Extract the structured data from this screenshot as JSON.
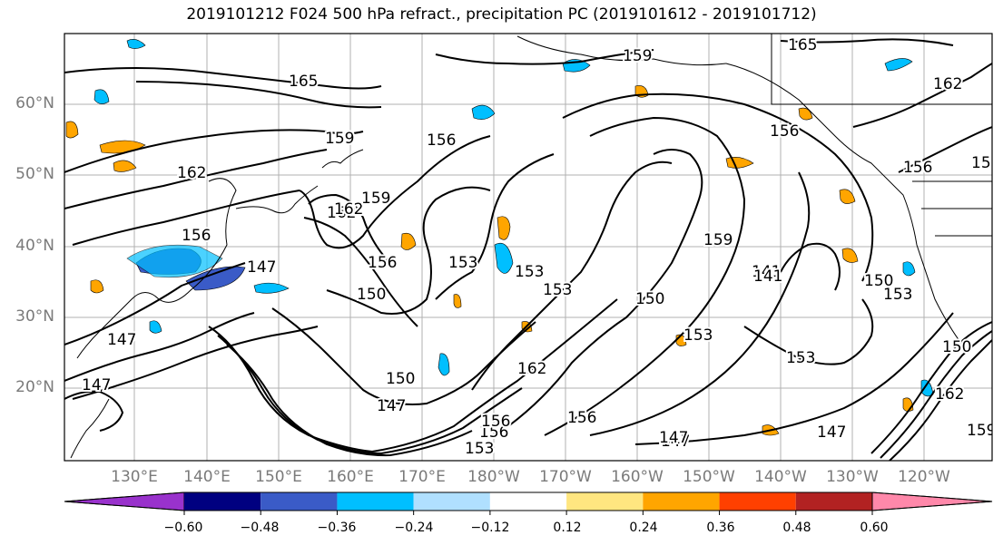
{
  "title": "2019101212 F024 500 hPa refract., precipitation PC (2019101612 - 2019101712)",
  "lat_labels": [
    "60°N",
    "50°N",
    "40°N",
    "30°N",
    "20°N"
  ],
  "lon_labels": [
    "130°E",
    "140°E",
    "150°E",
    "160°E",
    "170°E",
    "180°W",
    "170°W",
    "160°W",
    "150°W",
    "140°W",
    "130°W",
    "120°W"
  ],
  "colorbar": {
    "ticks": [
      "−0.60",
      "−0.48",
      "−0.36",
      "−0.24",
      "−0.12",
      "0.12",
      "0.24",
      "0.36",
      "0.48",
      "0.60"
    ],
    "colors": [
      "#9932cc",
      "#000080",
      "#3a5bc7",
      "#00bfff",
      "#b0e0ff",
      "#ffffff",
      "#ffe680",
      "#ffa500",
      "#ff4000",
      "#b22222",
      "#ff88aa"
    ]
  },
  "contour_labels": [
    "165",
    "159",
    "162",
    "156",
    "165",
    "159",
    "156",
    "162",
    "159",
    "147",
    "156",
    "162",
    "156",
    "150",
    "153",
    "153",
    "153",
    "150",
    "153",
    "159",
    "147",
    "150",
    "147",
    "156",
    "147",
    "162",
    "156",
    "147",
    "150",
    "141",
    "153",
    "156",
    "159",
    "162",
    "150",
    "153",
    "147",
    "162",
    "159",
    "141",
    "153",
    "156",
    "147"
  ]
}
